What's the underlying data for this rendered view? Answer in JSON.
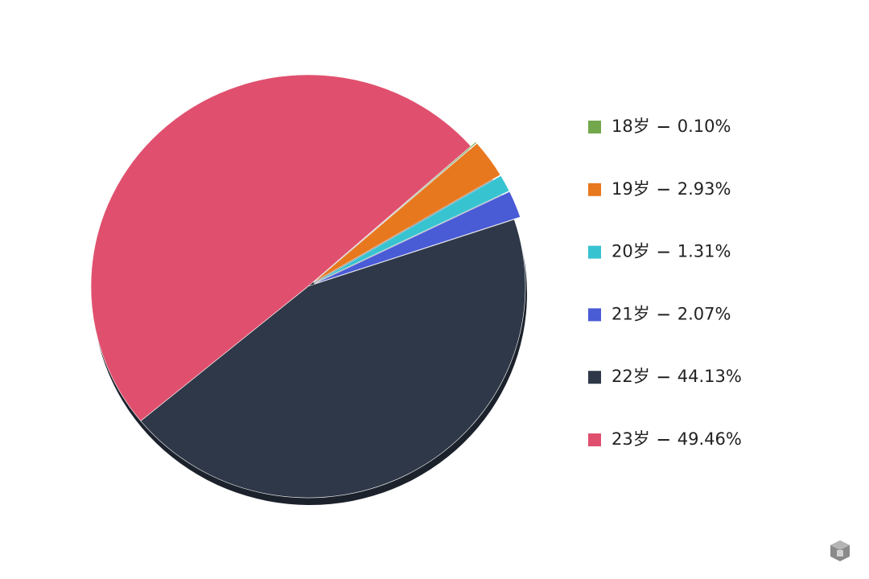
{
  "chart_data": {
    "type": "pie",
    "categories": [
      "18岁",
      "19岁",
      "20岁",
      "21岁",
      "22岁",
      "23岁"
    ],
    "values": [
      0.1,
      2.93,
      1.31,
      2.07,
      44.13,
      49.46
    ],
    "value_labels": [
      "0.10%",
      "2.93%",
      "1.31%",
      "2.07%",
      "44.13%",
      "49.46%"
    ],
    "colors": [
      "#72a84b",
      "#e8781e",
      "#38c3d1",
      "#4a5bd6",
      "#2f3848",
      "#e0506e"
    ],
    "legend": "right"
  }
}
